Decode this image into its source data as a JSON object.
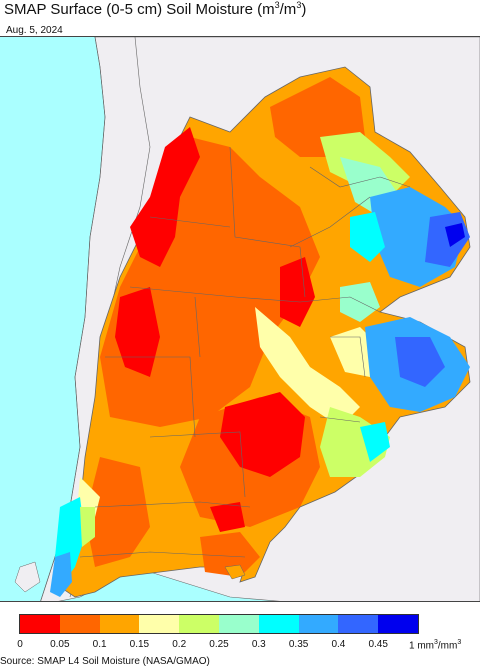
{
  "title_prefix": "SMAP Surface (0-5 cm) Soil Moisture (m",
  "title_sup1": "3",
  "title_mid": "/m",
  "title_sup2": "3",
  "title_suffix": ")",
  "date": "Aug. 5, 2024",
  "source": "Source: SMAP L4 Soil Moisture (NASA/GMAO)",
  "legend": {
    "colors": [
      "#ff0000",
      "#ff6600",
      "#ffa500",
      "#ffffaa",
      "#ccff66",
      "#99ffcc",
      "#00ffff",
      "#33aaff",
      "#3366ff",
      "#0000ee"
    ],
    "ticks": [
      "0",
      "0.05",
      "0.1",
      "0.15",
      "0.2",
      "0.25",
      "0.3",
      "0.35",
      "0.4",
      "0.45"
    ],
    "unit_prefix": "1 mm",
    "unit_sup1": "3",
    "unit_mid": "/mm",
    "unit_sup2": "3"
  },
  "map_colors": {
    "ocean": "#aaffff",
    "land_outside": "#f0eef2",
    "border": "#666666"
  }
}
